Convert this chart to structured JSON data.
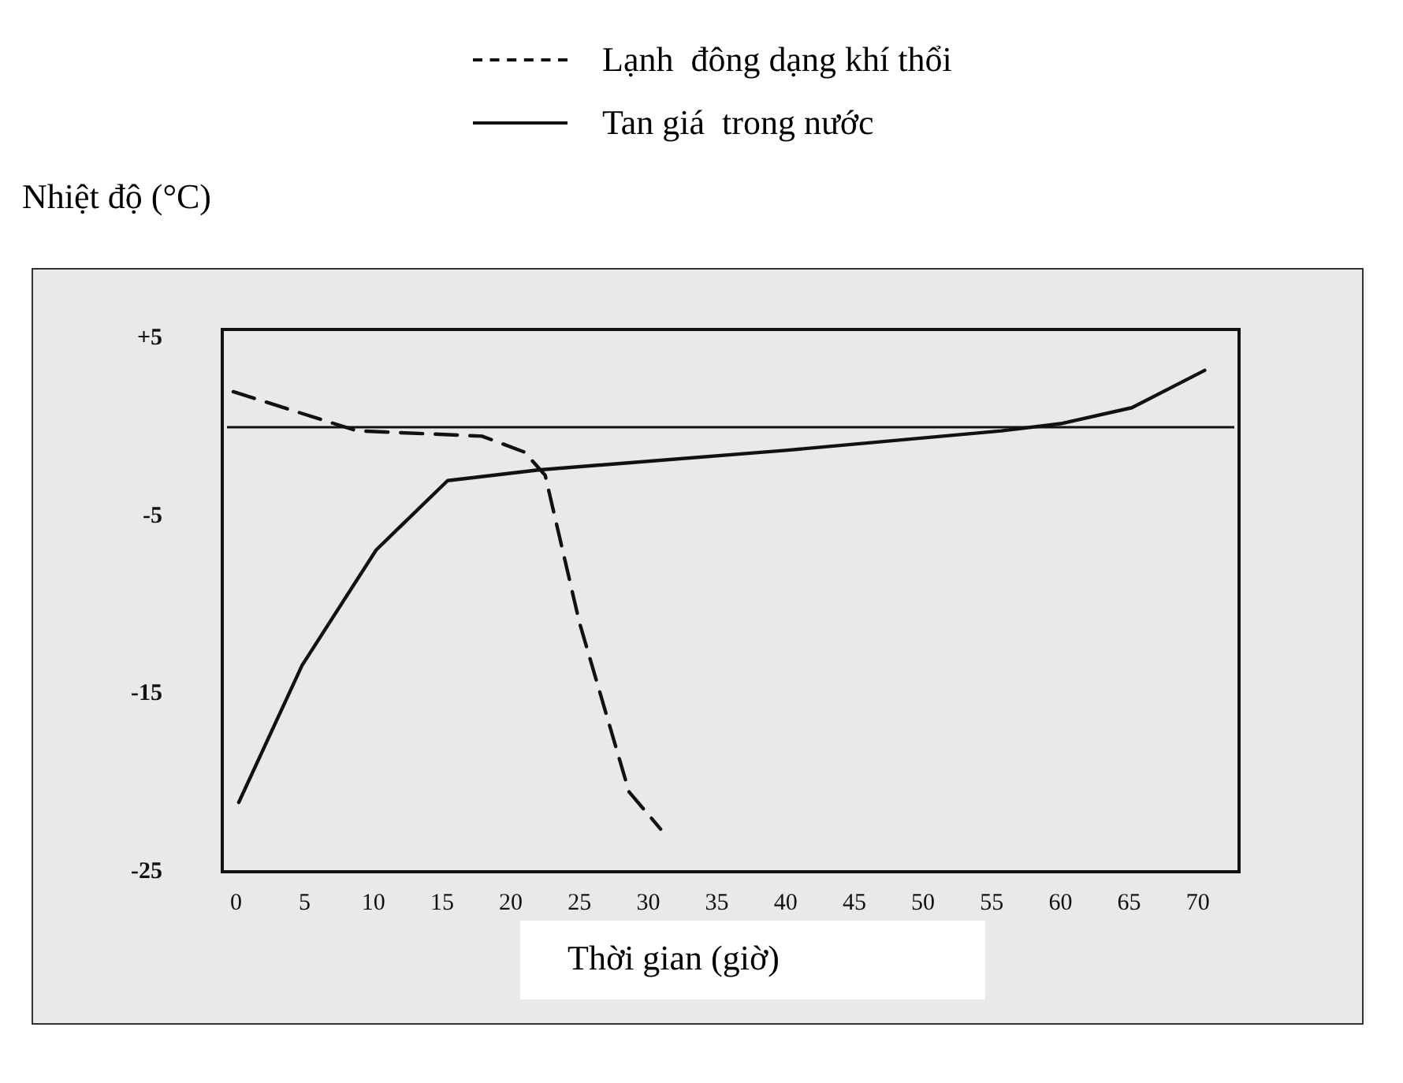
{
  "chart_data": {
    "type": "line",
    "ylabel": "Nhiệt độ (°C)",
    "xlabel": "Thời gian (giờ)",
    "legend": "top",
    "xlim": [
      -1,
      73
    ],
    "xticks": [
      0,
      5,
      10,
      15,
      20,
      25,
      30,
      35,
      40,
      45,
      50,
      55,
      60,
      65,
      70
    ],
    "ylim": [
      -25,
      5.5
    ],
    "yticks": [
      {
        "value": 5,
        "label": "+5"
      },
      -5,
      -15,
      -25
    ],
    "ref_lines": [
      {
        "axis": "y",
        "value": 0,
        "color": "#111111"
      }
    ],
    "series": [
      {
        "name": "Lạnh  đông dạng khí thổi",
        "color": "#111111",
        "line_style": "dashed",
        "x": [
          -0.2,
          8.8,
          17.9,
          21,
          22.5,
          25,
          28.6,
          30.9
        ],
        "values": [
          2.0,
          -0.2,
          -0.5,
          -1.4,
          -2.7,
          -11,
          -20.5,
          -22.6
        ]
      },
      {
        "name": "Tan giá  trong nước",
        "color": "#111111",
        "line_style": "solid",
        "x": [
          0.2,
          4.8,
          10.2,
          15.4,
          22,
          40,
          55.7,
          60,
          65.2,
          70.5
        ],
        "values": [
          -21.1,
          -13.4,
          -6.9,
          -3.0,
          -2.4,
          -1.3,
          -0.2,
          0.2,
          1.1,
          3.2
        ]
      }
    ]
  }
}
